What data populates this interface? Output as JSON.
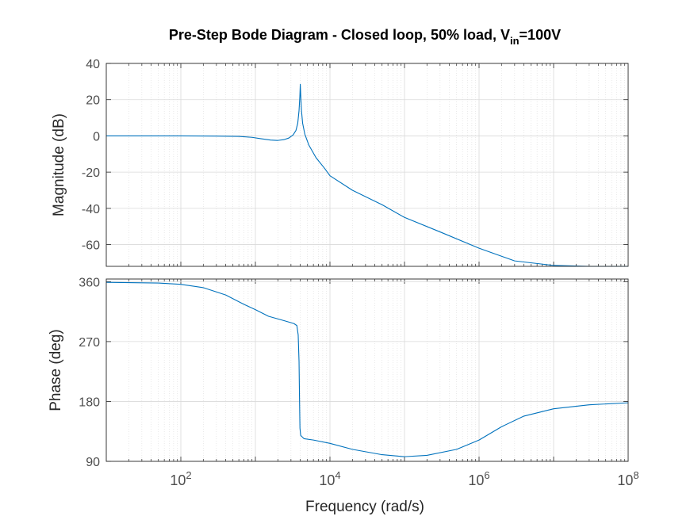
{
  "chart_data": {
    "type": "line",
    "title": "Pre-Step Bode Diagram - Closed loop, 50% load, V",
    "title_subscript": "in",
    "title_suffix": "=100V",
    "xlabel": "Frequency  (rad/s)",
    "xscale": "log",
    "xlim": [
      10,
      100000000
    ],
    "xticks": [
      {
        "value": 100,
        "base": "10",
        "exp": "2"
      },
      {
        "value": 10000,
        "base": "10",
        "exp": "4"
      },
      {
        "value": 1000000,
        "base": "10",
        "exp": "6"
      },
      {
        "value": 100000000,
        "base": "10",
        "exp": "8"
      }
    ],
    "grid": true,
    "line_color": "#0072bd",
    "panels": [
      {
        "name": "magnitude",
        "ylabel": "Magnitude (dB)",
        "ylim": [
          -72,
          40
        ],
        "yticks": [
          40,
          20,
          0,
          -20,
          -40,
          -60
        ],
        "points": [
          [
            10,
            0
          ],
          [
            100,
            0
          ],
          [
            300,
            -0.1
          ],
          [
            600,
            -0.3
          ],
          [
            900,
            -0.8
          ],
          [
            1200,
            -1.6
          ],
          [
            1600,
            -2.3
          ],
          [
            2000,
            -2.5
          ],
          [
            2400,
            -2.1
          ],
          [
            2800,
            -1.2
          ],
          [
            3200,
            0.5
          ],
          [
            3500,
            3
          ],
          [
            3700,
            7
          ],
          [
            3850,
            14
          ],
          [
            3950,
            22
          ],
          [
            4000,
            28.5
          ],
          [
            4060,
            22
          ],
          [
            4150,
            14
          ],
          [
            4300,
            7
          ],
          [
            4600,
            1
          ],
          [
            5200,
            -5
          ],
          [
            6500,
            -12
          ],
          [
            8500,
            -18
          ],
          [
            10000,
            -22
          ],
          [
            20000,
            -30
          ],
          [
            50000,
            -38
          ],
          [
            100000,
            -45
          ],
          [
            300000,
            -53
          ],
          [
            1000000,
            -62
          ],
          [
            3000000,
            -69
          ],
          [
            10000000,
            -71.5
          ],
          [
            30000000,
            -72
          ],
          [
            100000000,
            -72
          ]
        ]
      },
      {
        "name": "phase",
        "ylabel": "Phase (deg)",
        "ylim": [
          90,
          364
        ],
        "yticks": [
          360,
          270,
          180,
          90
        ],
        "points": [
          [
            10,
            359
          ],
          [
            50,
            358
          ],
          [
            100,
            356
          ],
          [
            200,
            351
          ],
          [
            400,
            340
          ],
          [
            700,
            326
          ],
          [
            1000,
            318
          ],
          [
            1500,
            308
          ],
          [
            2500,
            301
          ],
          [
            3300,
            297
          ],
          [
            3600,
            294
          ],
          [
            3750,
            280
          ],
          [
            3850,
            240
          ],
          [
            3900,
            190
          ],
          [
            3960,
            140
          ],
          [
            4050,
            129
          ],
          [
            4500,
            124
          ],
          [
            6000,
            122
          ],
          [
            10000,
            117
          ],
          [
            20000,
            108
          ],
          [
            50000,
            100
          ],
          [
            100000,
            97
          ],
          [
            200000,
            99
          ],
          [
            500000,
            108
          ],
          [
            1000000,
            122
          ],
          [
            2000000,
            142
          ],
          [
            4000000,
            158
          ],
          [
            10000000,
            169
          ],
          [
            30000000,
            175
          ],
          [
            100000000,
            178
          ]
        ]
      }
    ]
  }
}
